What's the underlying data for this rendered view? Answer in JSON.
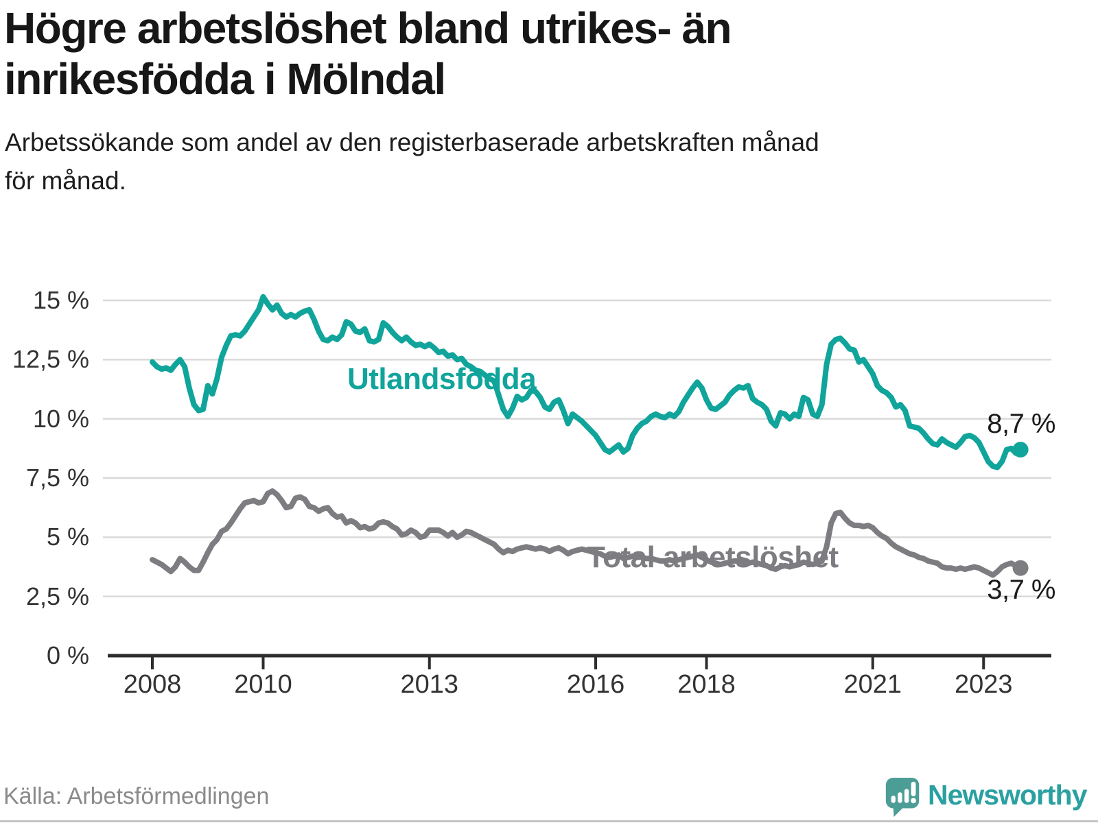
{
  "header": {
    "title_lines": [
      "Högre arbetslöshet bland utrikes- än",
      "inrikesfödda i Mölndal"
    ],
    "subtitle_lines": [
      "Arbetssökande som andel av den registerbaserade arbetskraften månad",
      "för månad."
    ]
  },
  "footer": {
    "source": "Källa: Arbetsförmedlingen",
    "brand": "Newsworthy"
  },
  "colors": {
    "series_foreign": "#10a49b",
    "series_total": "#7d7d81",
    "grid": "#d9d9d9",
    "axis": "#2d2d2d",
    "text_dark": "#1a1a1a",
    "tick_text": "#333333",
    "source_gray": "#8a8a8a",
    "logo_teal": "#4d9d97",
    "brand_text": "#2ba0a1"
  },
  "chart_data": {
    "type": "line",
    "title": "Högre arbetslöshet bland utrikes- än inrikesfödda i Mölndal",
    "subtitle": "Arbetssökande som andel av den registerbaserade arbetskraften månad för månad.",
    "xlabel": "",
    "ylabel": "",
    "frequency": "monthly",
    "x_start": "2008-01",
    "x_end": "2023-09",
    "grid": "horizontal",
    "legend_position": "inline-labels",
    "ylim": [
      0,
      16
    ],
    "y_ticks": [
      0,
      2.5,
      5,
      7.5,
      10,
      12.5,
      15
    ],
    "y_tick_labels": [
      "0 %",
      "2,5 %",
      "5 %",
      "7,5 %",
      "10 %",
      "12,5 %",
      "15 %"
    ],
    "x_tick_years": [
      2008,
      2010,
      2013,
      2016,
      2018,
      2021,
      2023
    ],
    "x_tick_labels": [
      "2008",
      "2010",
      "2013",
      "2016",
      "2018",
      "2021",
      "2023"
    ],
    "series": [
      {
        "name": "Utlandsfödda",
        "color": "#10a49b",
        "end_value": 8.7,
        "end_label": "8,7 %",
        "values": [
          12.4,
          12.2,
          12.1,
          12.15,
          12.05,
          12.3,
          12.5,
          12.2,
          11.3,
          10.6,
          10.35,
          10.4,
          11.4,
          11.05,
          11.7,
          12.6,
          13.1,
          13.5,
          13.55,
          13.5,
          13.7,
          14.0,
          14.3,
          14.6,
          15.15,
          14.85,
          14.6,
          14.8,
          14.45,
          14.3,
          14.4,
          14.3,
          14.45,
          14.55,
          14.6,
          14.2,
          13.7,
          13.35,
          13.3,
          13.45,
          13.35,
          13.55,
          14.1,
          14.0,
          13.7,
          13.65,
          13.8,
          13.3,
          13.25,
          13.35,
          14.05,
          13.9,
          13.65,
          13.45,
          13.3,
          13.45,
          13.25,
          13.1,
          13.15,
          13.05,
          13.15,
          13.0,
          12.8,
          12.85,
          12.65,
          12.7,
          12.5,
          12.55,
          12.3,
          12.2,
          12.05,
          12.0,
          11.85,
          11.7,
          11.6,
          11.0,
          10.4,
          10.1,
          10.45,
          10.95,
          10.8,
          10.9,
          11.2,
          11.15,
          10.9,
          10.5,
          10.4,
          10.7,
          10.8,
          10.35,
          9.8,
          10.2,
          10.05,
          9.9,
          9.7,
          9.5,
          9.3,
          9.0,
          8.7,
          8.6,
          8.75,
          8.9,
          8.6,
          8.75,
          9.3,
          9.6,
          9.8,
          9.9,
          10.1,
          10.2,
          10.1,
          10.05,
          10.2,
          10.1,
          10.3,
          10.7,
          11.0,
          11.3,
          11.55,
          11.3,
          10.8,
          10.45,
          10.4,
          10.55,
          10.7,
          11.0,
          11.2,
          11.35,
          11.3,
          11.4,
          10.85,
          10.7,
          10.6,
          10.4,
          9.9,
          9.7,
          10.25,
          10.2,
          10.0,
          10.2,
          10.1,
          10.9,
          10.8,
          10.2,
          10.1,
          10.6,
          12.3,
          13.15,
          13.35,
          13.4,
          13.2,
          12.95,
          12.9,
          12.4,
          12.5,
          12.2,
          11.9,
          11.4,
          11.2,
          11.1,
          10.9,
          10.5,
          10.6,
          10.35,
          9.7,
          9.65,
          9.6,
          9.4,
          9.15,
          8.95,
          8.9,
          9.15,
          9.0,
          8.9,
          8.8,
          9.0,
          9.25,
          9.3,
          9.2,
          9.0,
          8.6,
          8.2,
          8.0,
          7.95,
          8.2,
          8.7,
          8.75,
          8.55,
          8.7
        ]
      },
      {
        "name": "Total arbetslöshet",
        "color": "#7d7d81",
        "end_value": 3.7,
        "end_label": "3,7 %",
        "values": [
          4.05,
          3.95,
          3.85,
          3.7,
          3.55,
          3.75,
          4.1,
          3.95,
          3.75,
          3.6,
          3.6,
          3.95,
          4.35,
          4.7,
          4.9,
          5.25,
          5.35,
          5.6,
          5.9,
          6.2,
          6.45,
          6.5,
          6.55,
          6.45,
          6.5,
          6.85,
          6.95,
          6.8,
          6.55,
          6.25,
          6.3,
          6.65,
          6.7,
          6.6,
          6.3,
          6.25,
          6.1,
          6.2,
          6.25,
          6.0,
          5.85,
          5.9,
          5.6,
          5.7,
          5.6,
          5.4,
          5.45,
          5.35,
          5.4,
          5.6,
          5.65,
          5.6,
          5.45,
          5.35,
          5.1,
          5.15,
          5.3,
          5.2,
          5.0,
          5.05,
          5.3,
          5.3,
          5.3,
          5.2,
          5.05,
          5.2,
          5.0,
          5.1,
          5.25,
          5.2,
          5.1,
          5.0,
          4.9,
          4.8,
          4.7,
          4.5,
          4.35,
          4.45,
          4.4,
          4.5,
          4.55,
          4.6,
          4.55,
          4.5,
          4.55,
          4.5,
          4.4,
          4.5,
          4.55,
          4.45,
          4.3,
          4.4,
          4.45,
          4.5,
          4.45,
          4.4,
          4.35,
          4.3,
          4.2,
          4.15,
          4.2,
          4.25,
          4.1,
          4.15,
          4.2,
          4.2,
          4.15,
          4.1,
          4.1,
          4.05,
          4.0,
          4.0,
          4.05,
          4.0,
          4.05,
          4.1,
          4.15,
          4.2,
          4.25,
          4.15,
          4.05,
          3.95,
          3.9,
          3.85,
          3.9,
          3.95,
          4.0,
          4.0,
          3.95,
          3.9,
          3.95,
          3.9,
          3.85,
          3.8,
          3.7,
          3.65,
          3.75,
          3.8,
          3.75,
          3.8,
          3.85,
          3.95,
          3.9,
          3.85,
          3.9,
          4.0,
          4.6,
          5.6,
          6.0,
          6.05,
          5.8,
          5.6,
          5.5,
          5.5,
          5.45,
          5.5,
          5.4,
          5.2,
          5.05,
          4.95,
          4.75,
          4.6,
          4.5,
          4.4,
          4.3,
          4.25,
          4.15,
          4.1,
          4.0,
          3.95,
          3.9,
          3.75,
          3.7,
          3.7,
          3.65,
          3.7,
          3.65,
          3.7,
          3.75,
          3.7,
          3.6,
          3.5,
          3.4,
          3.55,
          3.75,
          3.85,
          3.9,
          3.8,
          3.7
        ]
      }
    ]
  }
}
